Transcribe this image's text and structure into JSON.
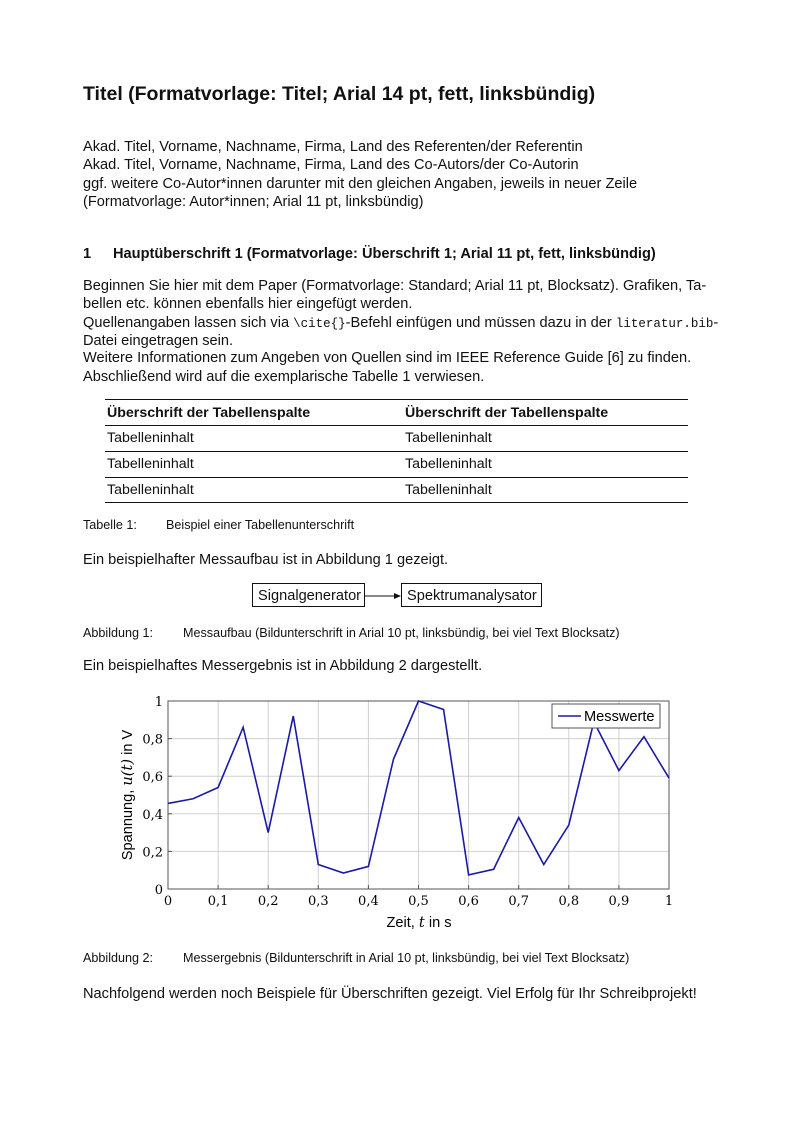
{
  "title": "Titel (Formatvorlage: Titel; Arial 14 pt, fett, linksbündig)",
  "authors": [
    "Akad. Titel, Vorname, Nachname, Firma, Land des Referenten/der Referentin",
    "Akad. Titel, Vorname, Nachname, Firma, Land des Co-Autors/der Co-Autorin",
    "ggf. weitere Co-Autor*innen darunter mit den gleichen Angaben, jeweils in neuer Zeile",
    "(Formatvorlage: Autor*innen; Arial 11 pt, linksbündig)"
  ],
  "section1": {
    "number": "1",
    "heading": "Hauptüberschrift 1 (Formatvorlage: Überschrift 1; Arial 11 pt, fett, linksbündig)",
    "lines": {
      "l1": "Beginnen Sie hier mit dem Paper (Formatvorlage: Standard; Arial 11 pt, Blocksatz). Grafiken, Ta-",
      "l2": "bellen etc. können ebenfalls hier eingefügt werden.",
      "l3a": "Quellenangaben lassen sich via ",
      "l3code": "\\cite{}",
      "l3b": "-Befehl einfügen und müssen dazu in der ",
      "l3file": "literatur.bib",
      "l3c": "-",
      "l4": "Datei eingetragen sein.",
      "l5": "Weitere Informationen zum Angeben von Quellen sind im IEEE Reference Guide [6] zu finden.",
      "l6": "Abschließend wird auf die exemplarische Tabelle 1 verwiesen."
    }
  },
  "table": {
    "headers": [
      "Überschrift der Tabellenspalte",
      "Überschrift der Tabellenspalte"
    ],
    "rows": [
      [
        "Tabelleninhalt",
        "Tabelleninhalt"
      ],
      [
        "Tabelleninhalt",
        "Tabelleninhalt"
      ],
      [
        "Tabelleninhalt",
        "Tabelleninhalt"
      ]
    ],
    "caption_label": "Tabelle 1:",
    "caption_text": "Beispiel einer Tabellenunterschrift"
  },
  "fig1": {
    "intro": "Ein beispielhafter Messaufbau ist in Abbildung 1 gezeigt.",
    "box1": "Signalgenerator",
    "box2": "Spektrumanalysator",
    "caption_label": "Abbildung 1:",
    "caption_text": "Messaufbau (Bildunterschrift in Arial 10 pt, linksbündig, bei viel Text Blocksatz)"
  },
  "fig2": {
    "intro": "Ein beispielhaftes Messergebnis ist in Abbildung 2 dargestellt.",
    "caption_label": "Abbildung 2:",
    "caption_text": "Messergebnis (Bildunterschrift in Arial 10 pt, linksbündig, bei viel Text Blocksatz)"
  },
  "closing": "Nachfolgend werden noch Beispiele für Überschriften gezeigt. Viel Erfolg für Ihr Schreibprojekt!",
  "chart_data": {
    "type": "line",
    "xlabel_parts": [
      "Zeit, ",
      "t",
      " in s"
    ],
    "ylabel_parts": [
      "Spannung, ",
      "u(t)",
      " in V"
    ],
    "xlim": [
      0,
      1
    ],
    "ylim": [
      0,
      1
    ],
    "xticks": [
      "0",
      "0,1",
      "0,2",
      "0,3",
      "0,4",
      "0,5",
      "0,6",
      "0,7",
      "0,8",
      "0,9",
      "1"
    ],
    "yticks": [
      "0",
      "0,2",
      "0,4",
      "0,6",
      "0,8",
      "1"
    ],
    "grid": true,
    "legend_position": "top-right",
    "series": [
      {
        "name": "Messwerte",
        "color": "#1a1aa6",
        "x": [
          0,
          0.05,
          0.1,
          0.15,
          0.2,
          0.25,
          0.3,
          0.35,
          0.4,
          0.45,
          0.5,
          0.55,
          0.6,
          0.65,
          0.7,
          0.75,
          0.8,
          0.85,
          0.9,
          0.95,
          1.0
        ],
        "y": [
          0.455,
          0.48,
          0.54,
          0.86,
          0.3,
          0.92,
          0.13,
          0.085,
          0.12,
          0.69,
          1.0,
          0.955,
          0.075,
          0.105,
          0.38,
          0.13,
          0.34,
          0.89,
          0.63,
          0.81,
          0.59
        ]
      }
    ]
  }
}
